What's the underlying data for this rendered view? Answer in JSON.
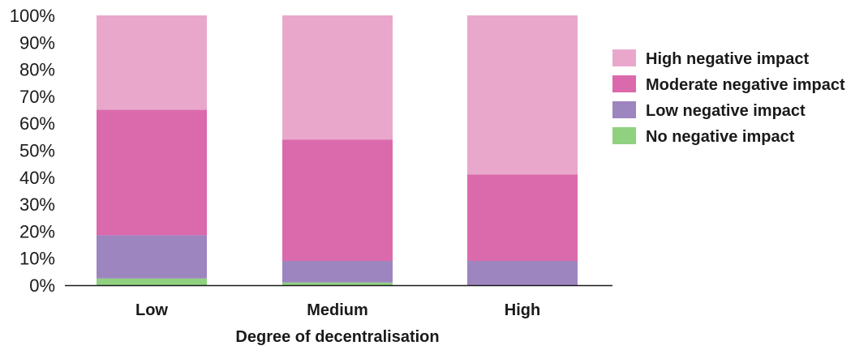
{
  "chart_data": {
    "type": "bar",
    "stacked": true,
    "title": "",
    "xlabel": "Degree of decentralisation",
    "ylabel": "",
    "ylim": [
      0,
      100
    ],
    "yticks": [
      "0%",
      "10%",
      "20%",
      "30%",
      "40%",
      "50%",
      "60%",
      "70%",
      "80%",
      "90%",
      "100%"
    ],
    "grid": false,
    "legend_position": "right",
    "categories": [
      "Low",
      "Medium",
      "High"
    ],
    "series": [
      {
        "name": "No negative impact",
        "color": "#8fd17f",
        "values": [
          2.5,
          1,
          0
        ]
      },
      {
        "name": "Low negative impact",
        "color": "#9d85c0",
        "values": [
          16,
          8,
          9
        ]
      },
      {
        "name": "Moderate negative impact",
        "color": "#db6aad",
        "values": [
          46.5,
          45,
          32
        ]
      },
      {
        "name": "High negative impact",
        "color": "#e9a8cb",
        "values": [
          35,
          46,
          59
        ]
      }
    ]
  }
}
